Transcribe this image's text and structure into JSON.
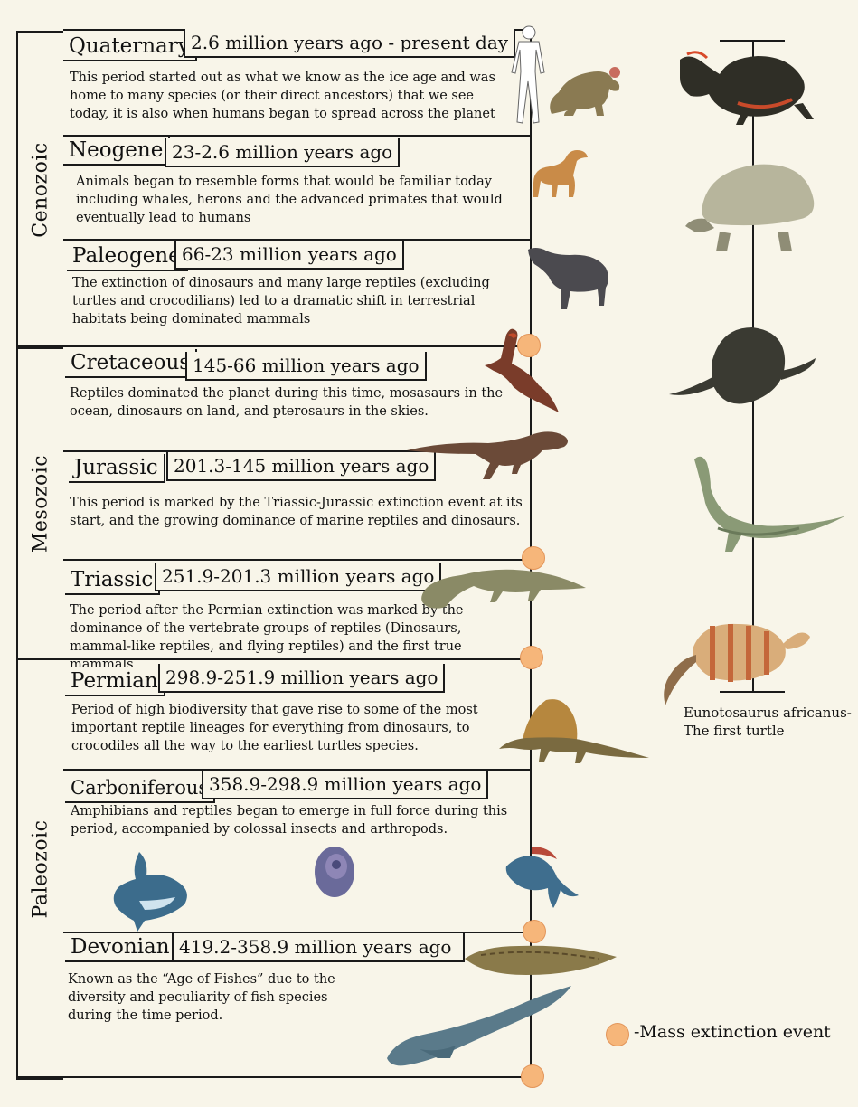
{
  "eras": [
    {
      "name": "Cenozoic"
    },
    {
      "name": "Mesozoic"
    },
    {
      "name": "Paleozoic"
    }
  ],
  "periods": [
    {
      "name": "Quaternary",
      "date": "2.6 million years ago - present day",
      "desc": "This period started out as what we know as the ice age and was home to many species (or their direct ancestors) that we see today, it is also when humans began to spread across the planet"
    },
    {
      "name": "Neogene",
      "date": "23-2.6 million years ago",
      "desc": "Animals began to resemble forms that would be familiar today including whales, herons and the advanced primates that would eventually lead to humans"
    },
    {
      "name": "Paleogene",
      "date": "66-23 million years ago",
      "desc": "The extinction of dinosaurs and many large reptiles (excluding turtles and crocodilians) led to a dramatic shift in terrestrial habitats being dominated mammals"
    },
    {
      "name": "Cretaceous",
      "date": "145-66 million years ago",
      "desc": "Reptiles dominated the planet during this time, mosasaurs in the ocean, dinosaurs on land, and pterosaurs in the skies."
    },
    {
      "name": "Jurassic",
      "date": "201.3-145 million years ago",
      "desc": "This period is marked by the Triassic-Jurassic extinction event at its start, and the growing dominance of marine reptiles and dinosaurs."
    },
    {
      "name": "Triassic",
      "date": "251.9-201.3 million years ago",
      "desc": "The period after the Permian extinction was marked by the dominance of the vertebrate groups of reptiles (Dinosaurs, mammal-like reptiles, and flying reptiles) and the first true mammals"
    },
    {
      "name": "Permian",
      "date": "298.9-251.9 million years ago",
      "desc": "Period of high biodiversity that gave rise to some of the most important reptile lineages for everything from dinosaurs, to crocodiles all the way to the earliest turtles species."
    },
    {
      "name": "Carboniferous",
      "date": "358.9-298.9 million years ago",
      "desc": "Amphibians and reptiles began to emerge in full force during this period, accompanied by colossal insects and arthropods."
    },
    {
      "name": "Devonian",
      "date": "419.2-358.9 million years ago",
      "desc": "Known as the “Age of Fishes” due to the diversity and peculiarity of fish species during the time period."
    }
  ],
  "turtle_caption": "Eunotosaurus africanus-\nThe first turtle",
  "legend": {
    "text": "-Mass extinction event",
    "color": "#f6b67a"
  },
  "icons": [
    "human-silhouette-icon",
    "ground-sloth-icon",
    "macrauchenia-icon",
    "tapir-icon",
    "pterosaur-icon",
    "theropod-icon",
    "crocodilian-icon",
    "dimetrodon-icon",
    "shark-icon",
    "ammonite-icon",
    "fish-icon",
    "lungfish-icon",
    "tiktaalik-icon",
    "painted-turtle-icon",
    "tortoise-icon",
    "sea-turtle-icon",
    "stem-turtle-icon",
    "eunotosaurus-icon"
  ]
}
